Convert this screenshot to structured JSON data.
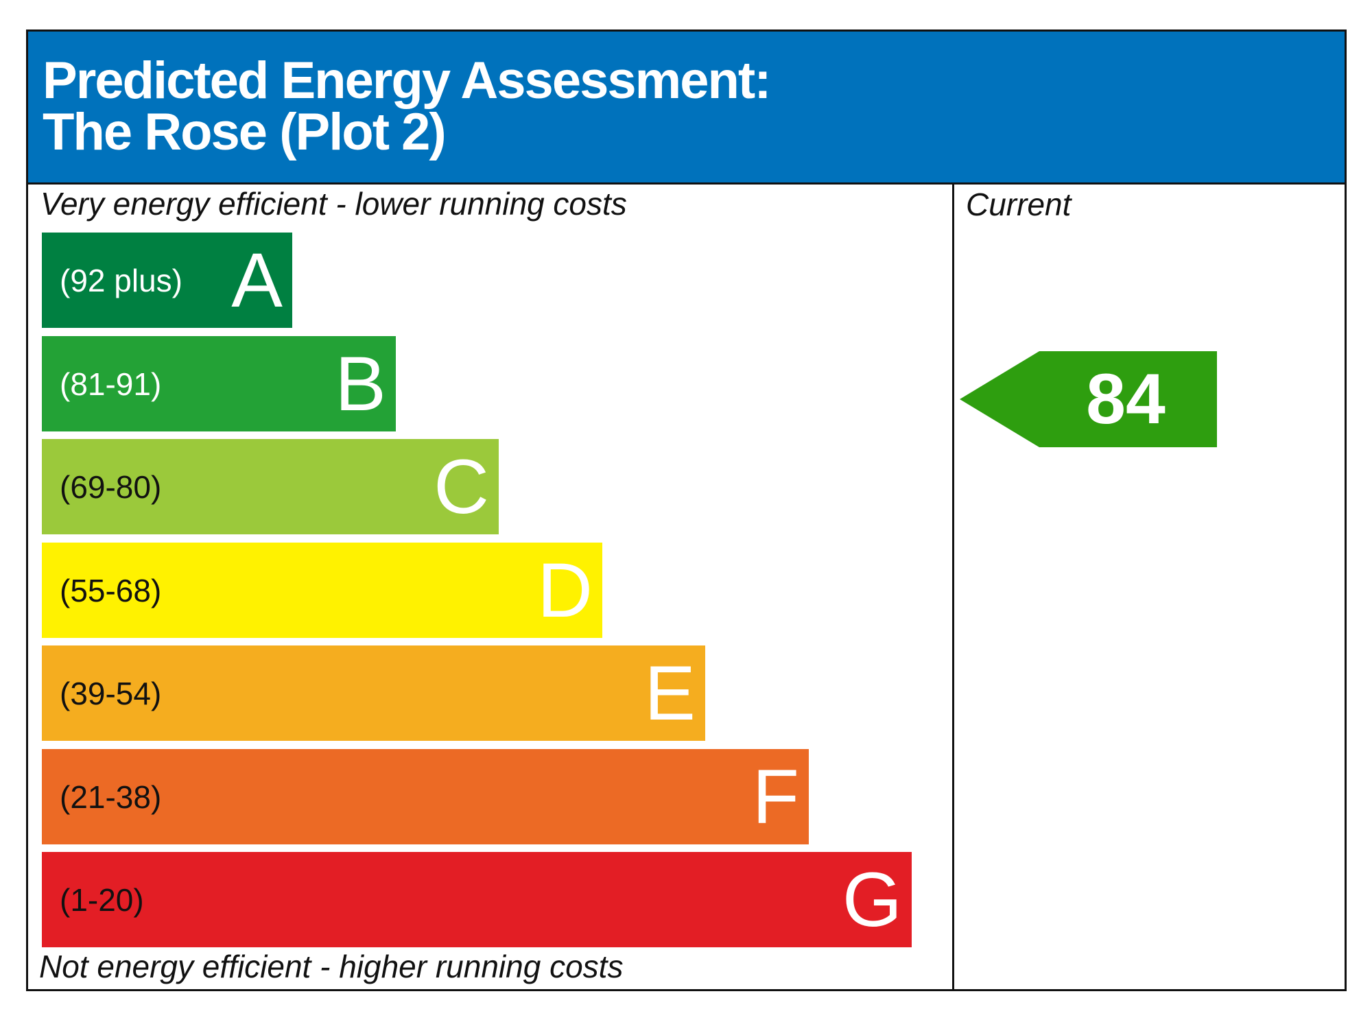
{
  "title": {
    "line1": "Predicted Energy Assessment:",
    "line2": "The Rose (Plot 2)"
  },
  "captions": {
    "top": "Very energy efficient - lower running costs",
    "bottom": "Not energy efficient - higher running costs",
    "current_column": "Current"
  },
  "colors": {
    "header": "#0072bc",
    "A": "#008041",
    "B": "#23a236",
    "C": "#9bc93b",
    "D": "#fff200",
    "E": "#f5ad1f",
    "F": "#ec6a25",
    "G": "#e31e25",
    "current_rating": "#2e9e0f"
  },
  "chart_data": {
    "type": "bar",
    "categories": [
      "A",
      "B",
      "C",
      "D",
      "E",
      "F",
      "G"
    ],
    "ranges": [
      "(92 plus)",
      "(81-91)",
      "(69-80)",
      "(55-68)",
      "(39-54)",
      "(21-38)",
      "(1-20)"
    ],
    "range_bounds": [
      [
        92,
        null
      ],
      [
        81,
        91
      ],
      [
        69,
        80
      ],
      [
        55,
        68
      ],
      [
        39,
        54
      ],
      [
        21,
        38
      ],
      [
        1,
        20
      ]
    ],
    "series": [
      {
        "name": "Current",
        "value": 84,
        "band": "B"
      }
    ]
  }
}
